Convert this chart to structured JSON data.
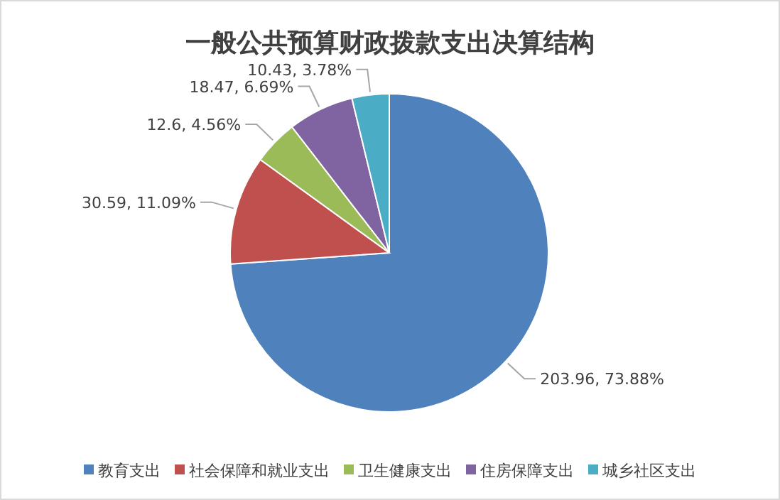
{
  "chart_data": {
    "type": "pie",
    "title": "一般公共预算财政拨款支出决算结构",
    "categories": [
      "教育支出",
      "社会保障和就业支出",
      "卫生健康支出",
      "住房保障支出",
      "城乡社区支出"
    ],
    "values": [
      203.96,
      30.59,
      12.6,
      18.47,
      10.43
    ],
    "colors": [
      "#4f81bd",
      "#c0504d",
      "#9bbb59",
      "#8064a2",
      "#4bacc6"
    ],
    "value_labels": [
      "203.96, 73.88%",
      "30.59, 11.09%",
      "12.6, 4.56%",
      "18.47, 6.69%",
      "10.43, 3.78%"
    ],
    "legend": "bottom"
  }
}
